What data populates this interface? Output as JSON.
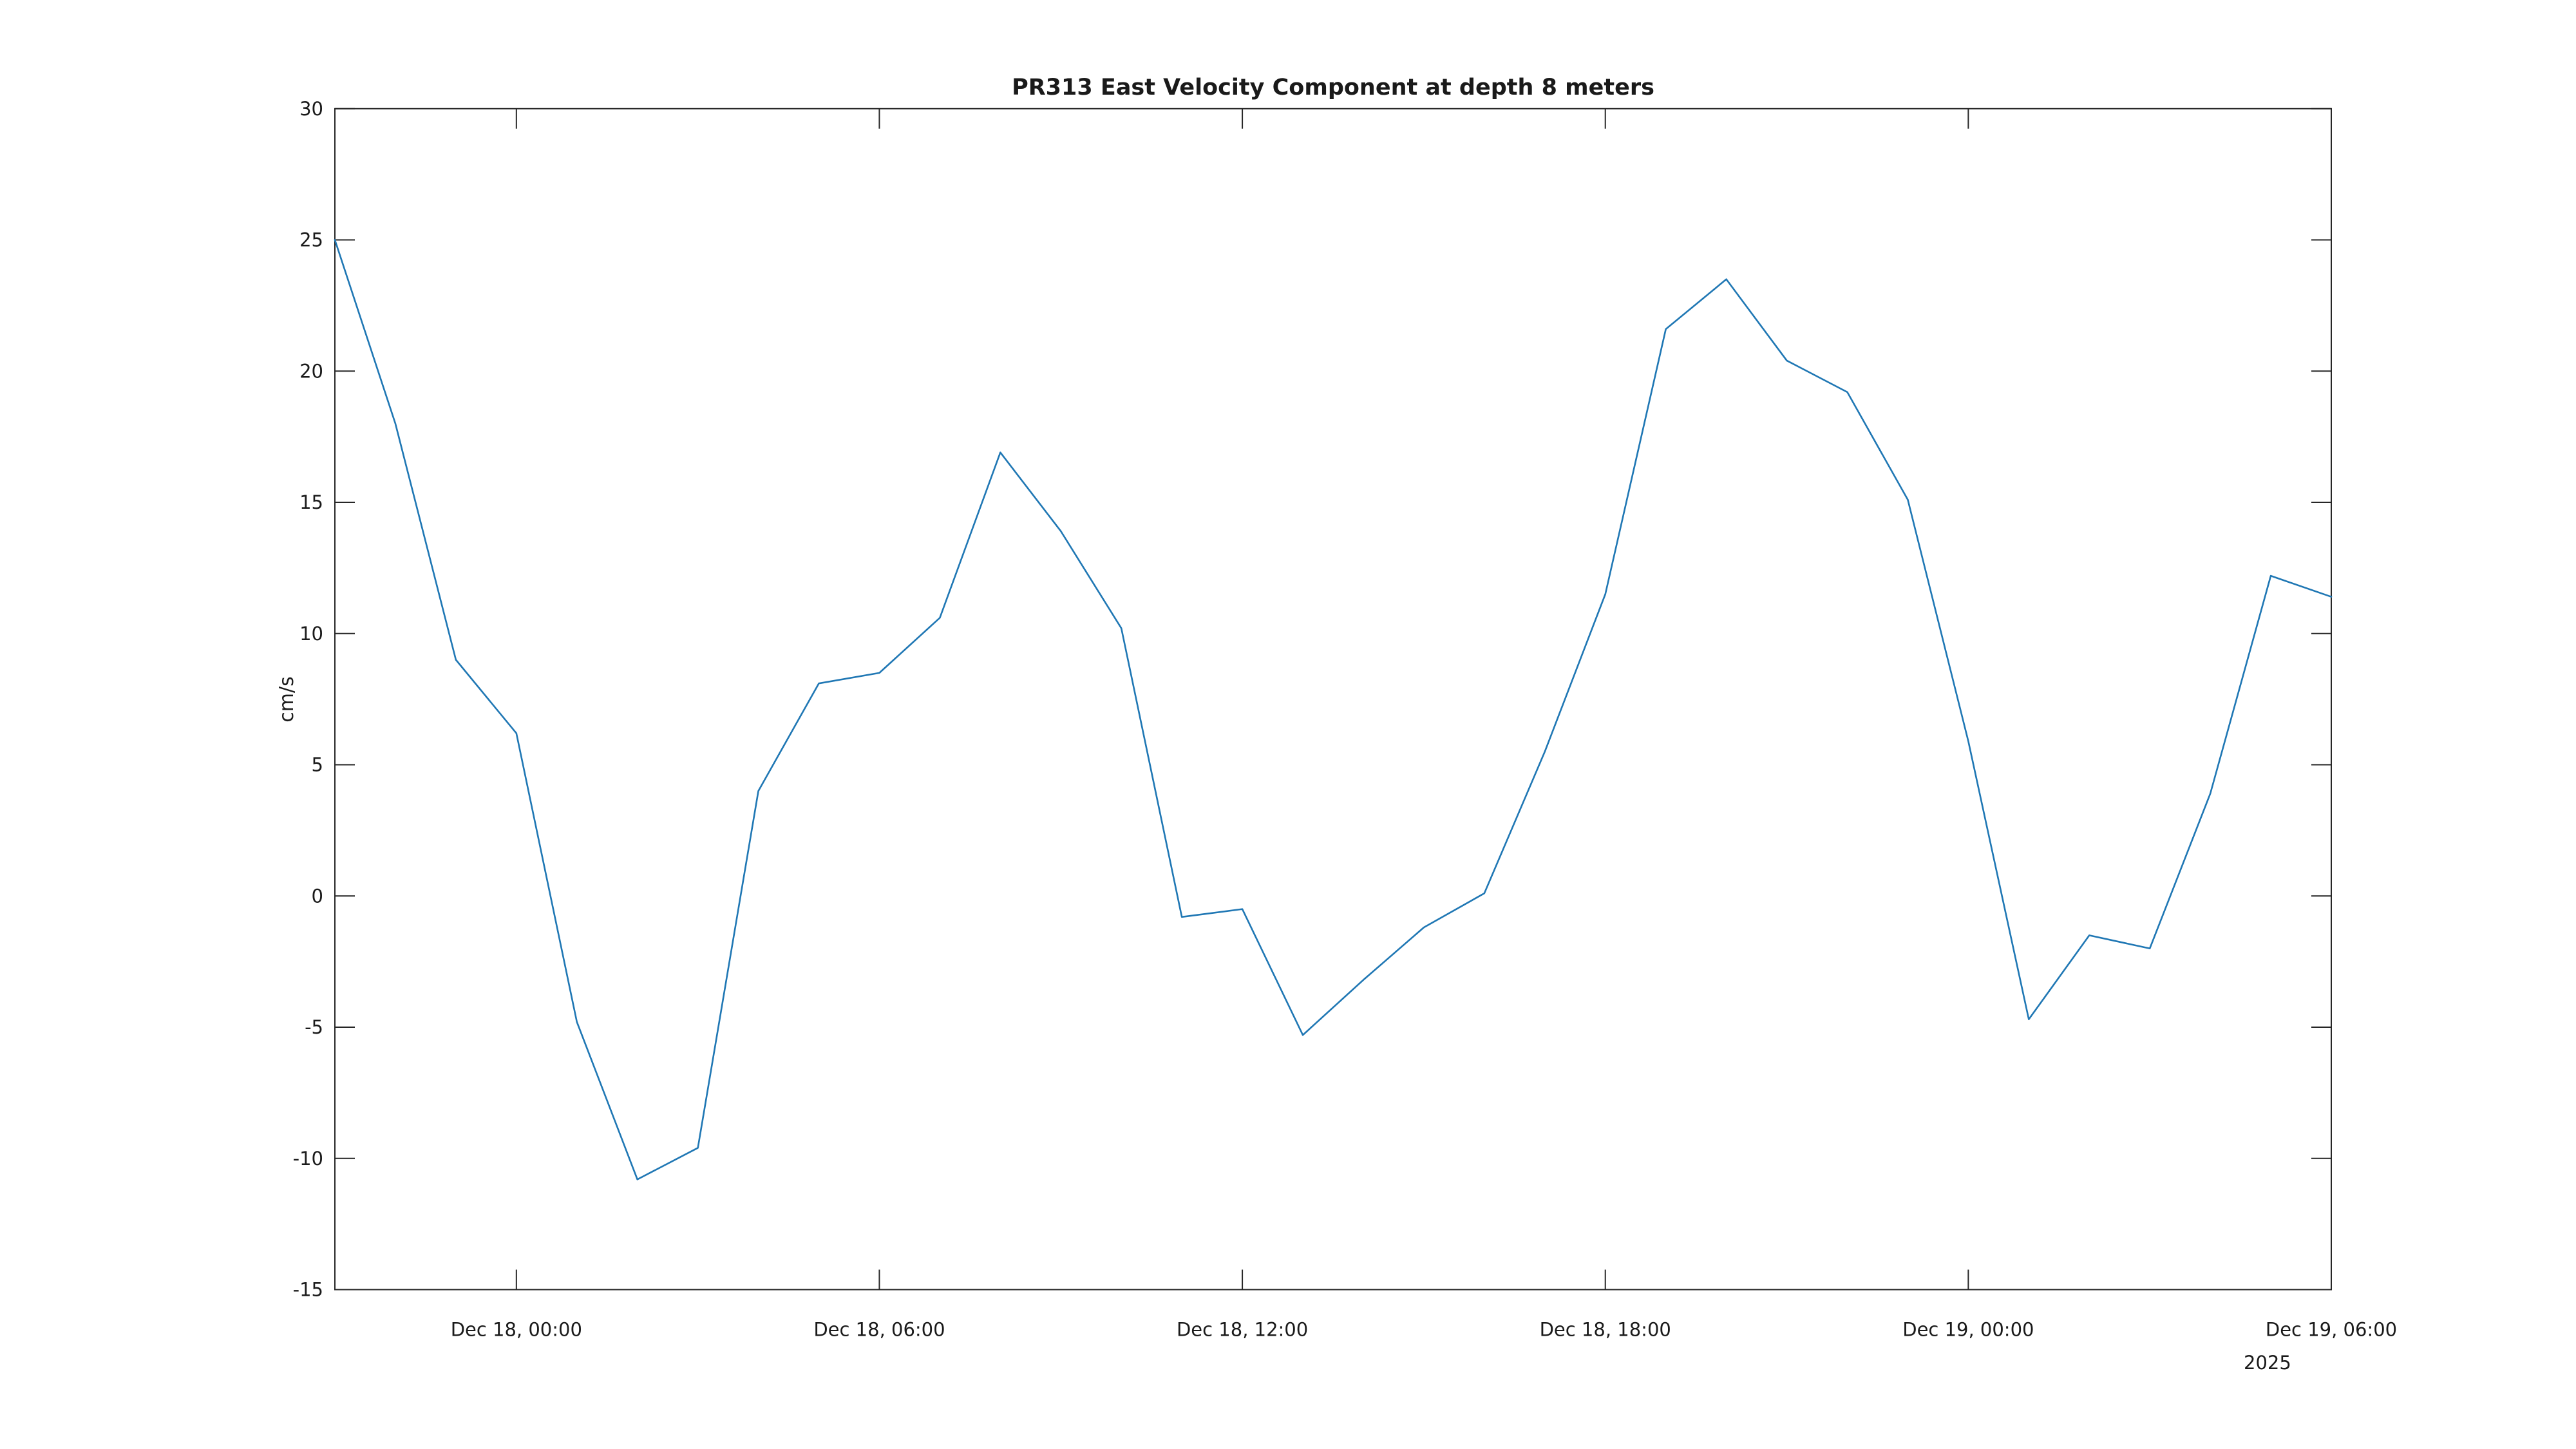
{
  "title": "PR313 East Velocity Component at depth 8 meters",
  "ylabel": "cm/s",
  "year_offset": "2025",
  "colors": {
    "line": "#1f77b4",
    "axis": "#262626",
    "text": "#1a1a1a",
    "background": "#ffffff"
  },
  "chart_data": {
    "type": "line",
    "title": "PR313 East Velocity Component at depth 8 meters",
    "xlabel": "",
    "ylabel": "cm/s",
    "series_name": "east velocity",
    "x_start": "Dec 17, 2025 21:00",
    "x_step_hours": 1,
    "x_span_hours": 33,
    "values": [
      25.0,
      18.0,
      9.0,
      6.2,
      -4.8,
      -10.8,
      -9.6,
      4.0,
      8.1,
      8.5,
      10.6,
      16.9,
      13.9,
      10.2,
      -0.8,
      -0.5,
      -5.3,
      -3.2,
      -1.2,
      0.1,
      5.5,
      11.5,
      21.6,
      23.5,
      20.4,
      19.2,
      15.1,
      5.9,
      -4.7,
      -1.5,
      -2.0,
      3.9,
      12.2,
      11.4
    ],
    "x_ticks": [
      {
        "hour": 3,
        "label": "Dec 18, 00:00"
      },
      {
        "hour": 9,
        "label": "Dec 18, 06:00"
      },
      {
        "hour": 15,
        "label": "Dec 18, 12:00"
      },
      {
        "hour": 21,
        "label": "Dec 18, 18:00"
      },
      {
        "hour": 27,
        "label": "Dec 19, 00:00"
      },
      {
        "hour": 33,
        "label": "Dec 19, 06:00",
        "offset_label": "2025"
      }
    ],
    "y_ticks": [
      30,
      25,
      20,
      15,
      10,
      5,
      0,
      -5,
      -10,
      -15
    ],
    "ylim": [
      -15,
      30
    ],
    "xlim_hours": [
      0,
      33
    ],
    "grid": false,
    "legend": null,
    "box": true,
    "tick_direction": "in"
  }
}
